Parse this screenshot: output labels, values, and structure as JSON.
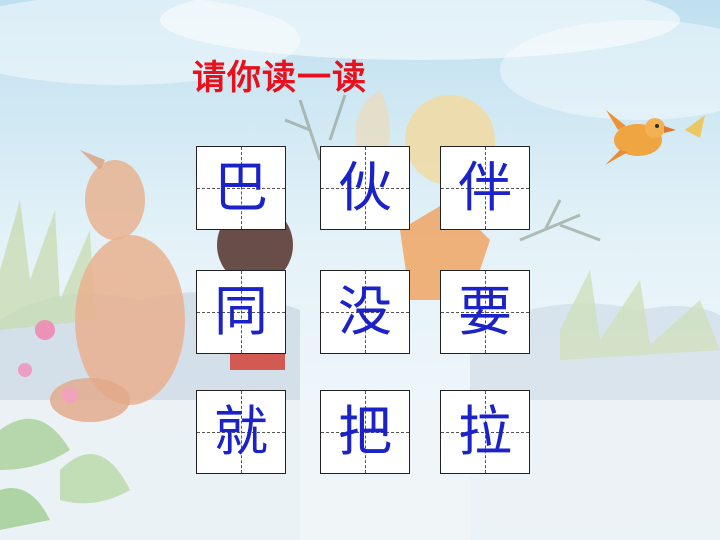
{
  "title": "请你读一读",
  "colors": {
    "title": "#e8101c",
    "character": "#1a22c8"
  },
  "characters": [
    [
      "巴",
      "伙",
      "伴"
    ],
    [
      "同",
      "没",
      "要"
    ],
    [
      "就",
      "把",
      "拉"
    ]
  ]
}
